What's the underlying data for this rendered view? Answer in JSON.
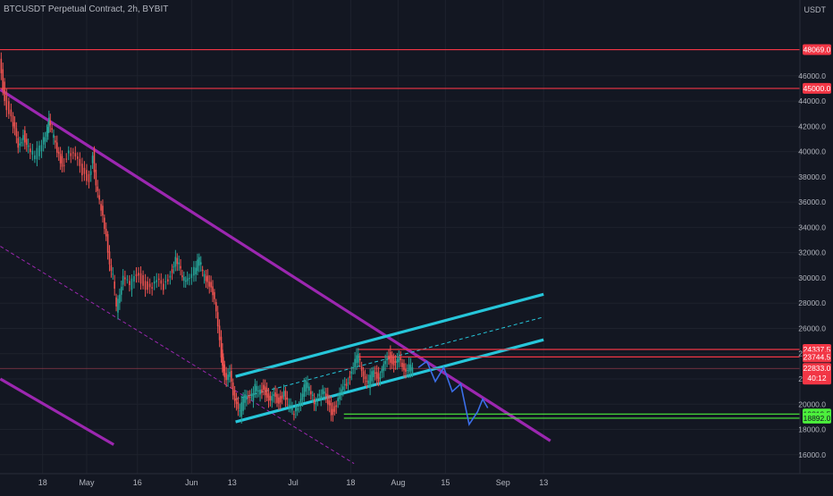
{
  "chart_data": {
    "type": "line",
    "title": "BTCUSDT Perpetual Contract, 2h, BYBIT",
    "unit": "USDT",
    "ylim": [
      14500,
      52000
    ],
    "y_ticks": [
      16000,
      18000,
      20000,
      22000,
      24000,
      26000,
      28000,
      30000,
      32000,
      34000,
      36000,
      38000,
      40000,
      42000,
      44000,
      46000
    ],
    "x_ticks": [
      {
        "label": "18",
        "day": 17
      },
      {
        "label": "May",
        "day": 30
      },
      {
        "label": "16",
        "day": 45
      },
      {
        "label": "Jun",
        "day": 61
      },
      {
        "label": "13",
        "day": 73
      },
      {
        "label": "Jul",
        "day": 91
      },
      {
        "label": "18",
        "day": 108
      },
      {
        "label": "Aug",
        "day": 122
      },
      {
        "label": "15",
        "day": 136
      },
      {
        "label": "Sep",
        "day": 153
      },
      {
        "label": "13",
        "day": 165
      }
    ],
    "x_domain_days": [
      4.4,
      250.5
    ],
    "price_series": [
      [
        4.5,
        47200
      ],
      [
        6,
        44200
      ],
      [
        8,
        42500
      ],
      [
        9,
        41500
      ],
      [
        10,
        40200
      ],
      [
        11.5,
        41500
      ],
      [
        13,
        40200
      ],
      [
        15,
        39500
      ],
      [
        17,
        40800
      ],
      [
        18.5,
        41800
      ],
      [
        19,
        42800
      ],
      [
        20,
        41400
      ],
      [
        21.5,
        40200
      ],
      [
        23,
        39000
      ],
      [
        25,
        39800
      ],
      [
        27,
        39400
      ],
      [
        29,
        38400
      ],
      [
        31,
        37800
      ],
      [
        32,
        39800
      ],
      [
        33,
        37000
      ],
      [
        34.5,
        35600
      ],
      [
        36,
        33500
      ],
      [
        37,
        31200
      ],
      [
        38,
        30000
      ],
      [
        39,
        27600
      ],
      [
        40,
        29000
      ],
      [
        41,
        30300
      ],
      [
        43,
        29200
      ],
      [
        45,
        30400
      ],
      [
        47,
        29600
      ],
      [
        49,
        29000
      ],
      [
        51,
        29600
      ],
      [
        53,
        29300
      ],
      [
        55,
        30400
      ],
      [
        56.5,
        31400
      ],
      [
        57.5,
        30900
      ],
      [
        58.5,
        29900
      ],
      [
        60,
        30200
      ],
      [
        62,
        30600
      ],
      [
        63.5,
        31400
      ],
      [
        64.5,
        30400
      ],
      [
        66,
        29900
      ],
      [
        67,
        29400
      ],
      [
        68,
        28000
      ],
      [
        69,
        26000
      ],
      [
        70,
        24000
      ],
      [
        70.5,
        22800
      ],
      [
        71.5,
        21600
      ],
      [
        72.5,
        22400
      ],
      [
        73.5,
        21000
      ],
      [
        74.5,
        20200
      ],
      [
        75.5,
        19200
      ],
      [
        76.5,
        20400
      ],
      [
        77.5,
        21000
      ],
      [
        79,
        20600
      ],
      [
        80,
        21300
      ],
      [
        81,
        20900
      ],
      [
        82.5,
        21400
      ],
      [
        83.5,
        20700
      ],
      [
        84.5,
        20000
      ],
      [
        85.5,
        20600
      ],
      [
        87,
        20300
      ],
      [
        88.5,
        20800
      ],
      [
        90,
        19700
      ],
      [
        91.5,
        19400
      ],
      [
        92.5,
        20000
      ],
      [
        93.5,
        20600
      ],
      [
        95,
        21600
      ],
      [
        96.5,
        21000
      ],
      [
        97.5,
        20300
      ],
      [
        99,
        20600
      ],
      [
        100,
        20900
      ],
      [
        101.5,
        20200
      ],
      [
        102.5,
        19400
      ],
      [
        103.5,
        19600
      ],
      [
        105,
        20500
      ],
      [
        106,
        21200
      ],
      [
        107.5,
        22000
      ],
      [
        108.5,
        22800
      ],
      [
        109.5,
        23300
      ],
      [
        110.5,
        23800
      ],
      [
        111.5,
        22900
      ],
      [
        112.5,
        22200
      ],
      [
        113.5,
        21600
      ],
      [
        114.5,
        22400
      ],
      [
        115.5,
        22700
      ],
      [
        116.5,
        22000
      ],
      [
        117.5,
        22500
      ],
      [
        118.5,
        23200
      ],
      [
        119.5,
        23800
      ],
      [
        120.5,
        23400
      ],
      [
        121.5,
        23000
      ],
      [
        122.5,
        23500
      ],
      [
        123.5,
        23200
      ],
      [
        124.5,
        22800
      ],
      [
        125.5,
        22900
      ],
      [
        126.5,
        22700
      ]
    ],
    "projection_path": [
      [
        128,
        22900
      ],
      [
        130.5,
        23400
      ],
      [
        133,
        21800
      ],
      [
        135.5,
        22900
      ],
      [
        138,
        21000
      ],
      [
        140.5,
        21600
      ],
      [
        143,
        18400
      ],
      [
        145.5,
        19400
      ],
      [
        147,
        20400
      ],
      [
        148.5,
        19700
      ]
    ],
    "horizontal_levels": [
      {
        "value": 48069,
        "label": "48069.0",
        "color": "#f23645"
      },
      {
        "value": 45000,
        "label": "45000.0",
        "color": "#f23645"
      },
      {
        "value": 24337.5,
        "label": "24337.5",
        "color": "#f23645"
      },
      {
        "value": 23744.5,
        "label": "23744.5",
        "color": "#f23645"
      },
      {
        "value": 19219.5,
        "label": "19219.5",
        "color": "#4cf03c"
      },
      {
        "value": 18892,
        "label": "18892.0",
        "color": "#4cf03c"
      }
    ],
    "current_price": {
      "value": 22833,
      "label": "22833.0",
      "countdown": "40:12",
      "color": "#f23645"
    },
    "trendlines": [
      {
        "from": [
          4.5,
          44900
        ],
        "to": [
          167,
          17100
        ],
        "color": "#9c27b0",
        "style": "solid"
      },
      {
        "from": [
          4.5,
          22000
        ],
        "to": [
          38,
          16800
        ],
        "color": "#9c27b0",
        "style": "solid"
      },
      {
        "from": [
          4.5,
          32500
        ],
        "to": [
          109,
          15300
        ],
        "color": "#9c27b0",
        "style": "dashed"
      },
      {
        "from": [
          74,
          22200
        ],
        "to": [
          165,
          28700
        ],
        "color": "#26c6da",
        "style": "solid"
      },
      {
        "from": [
          74,
          18600
        ],
        "to": [
          165,
          25100
        ],
        "color": "#26c6da",
        "style": "solid"
      },
      {
        "from": [
          74,
          20400
        ],
        "to": [
          165,
          26900
        ],
        "color": "#26c6da",
        "style": "dashed"
      }
    ],
    "colors": {
      "background": "#131722",
      "grid": "#1e222d",
      "candle_up": "#26a69a",
      "candle_down": "#ef5350",
      "projection": "#3b6ee8",
      "axis_text": "#b2b5be"
    },
    "grid": true
  }
}
